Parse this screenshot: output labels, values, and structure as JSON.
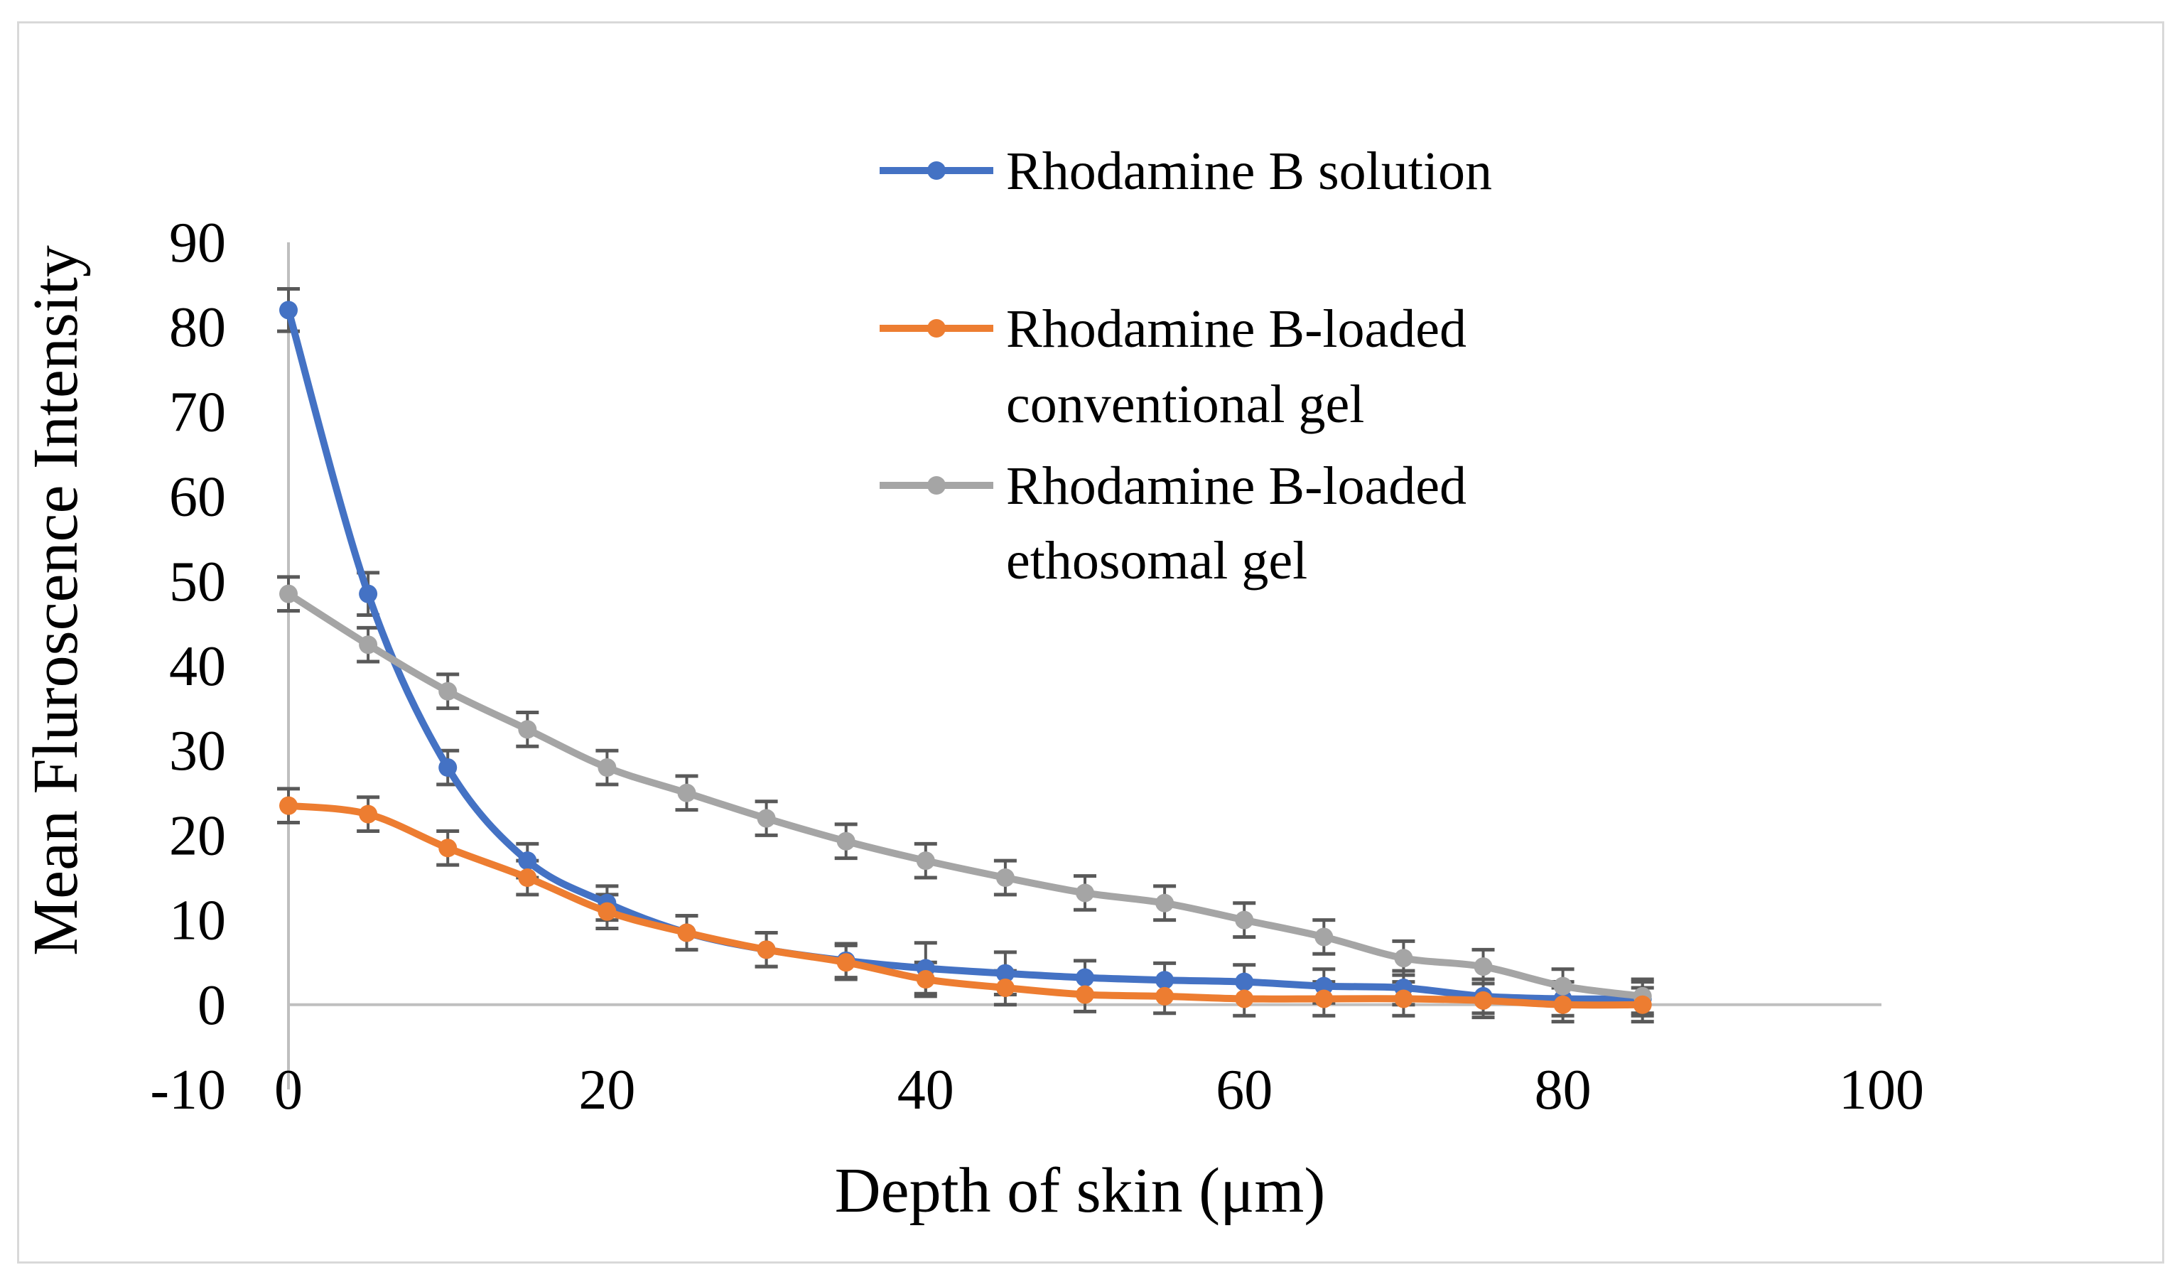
{
  "chart_data": {
    "type": "line",
    "title": "",
    "xlabel": "Depth of skin (μm)",
    "ylabel": "Mean Fluroscence Intensity",
    "xlim": [
      0,
      100
    ],
    "ylim": [
      -10,
      90
    ],
    "x_ticks": [
      0,
      20,
      40,
      60,
      80,
      100
    ],
    "y_ticks": [
      90,
      80,
      70,
      60,
      50,
      40,
      30,
      20,
      10,
      0,
      -10
    ],
    "x_tick_labels": [
      "0",
      "20",
      "40",
      "60",
      "80",
      "100"
    ],
    "y_tick_labels": [
      "90",
      "80",
      "70",
      "60",
      "50",
      "40",
      "30",
      "20",
      "10",
      "0",
      "-10"
    ],
    "x": [
      0,
      5,
      10,
      15,
      20,
      25,
      30,
      35,
      40,
      45,
      50,
      55,
      60,
      65,
      70,
      75,
      80,
      85
    ],
    "legend_position": "top-right",
    "series": [
      {
        "name": "Rhodamine B solution",
        "legend_lines": [
          "Rhodamine B solution"
        ],
        "color": "#4472c4",
        "values": [
          82,
          48.5,
          28,
          17,
          12,
          8.5,
          6.5,
          5.2,
          4.3,
          3.7,
          3.2,
          2.9,
          2.7,
          2.2,
          2,
          1,
          0.7,
          0.7
        ],
        "errors": [
          2.5,
          2.5,
          2,
          2,
          2,
          2,
          2,
          2,
          3,
          2.5,
          2,
          2,
          2,
          2,
          2,
          2,
          2,
          2
        ]
      },
      {
        "name": "Rhodamine B-loaded conventional gel",
        "legend_lines": [
          "Rhodamine B-loaded",
          "conventional gel"
        ],
        "color": "#ed7d31",
        "values": [
          23.5,
          22.5,
          18.5,
          15,
          11,
          8.5,
          6.5,
          5,
          3,
          2,
          1.2,
          1,
          0.7,
          0.7,
          0.7,
          0.5,
          0,
          0
        ],
        "errors": [
          2,
          2,
          2,
          2,
          2,
          2,
          2,
          2,
          2,
          2,
          2,
          2,
          2,
          2,
          2,
          2,
          2,
          2
        ]
      },
      {
        "name": "Rhodamine B-loaded ethosomal gel",
        "legend_lines": [
          "Rhodamine B-loaded",
          "ethosomal gel"
        ],
        "color": "#a5a5a5",
        "values": [
          48.5,
          42.5,
          37,
          32.5,
          28,
          25,
          22,
          19.3,
          17,
          15,
          13.2,
          12,
          10,
          8,
          5.5,
          4.5,
          2.2,
          1
        ],
        "errors": [
          2,
          2,
          2,
          2,
          2,
          2,
          2,
          2,
          2,
          2,
          2,
          2,
          2,
          2,
          2,
          2,
          2,
          2
        ]
      }
    ]
  }
}
